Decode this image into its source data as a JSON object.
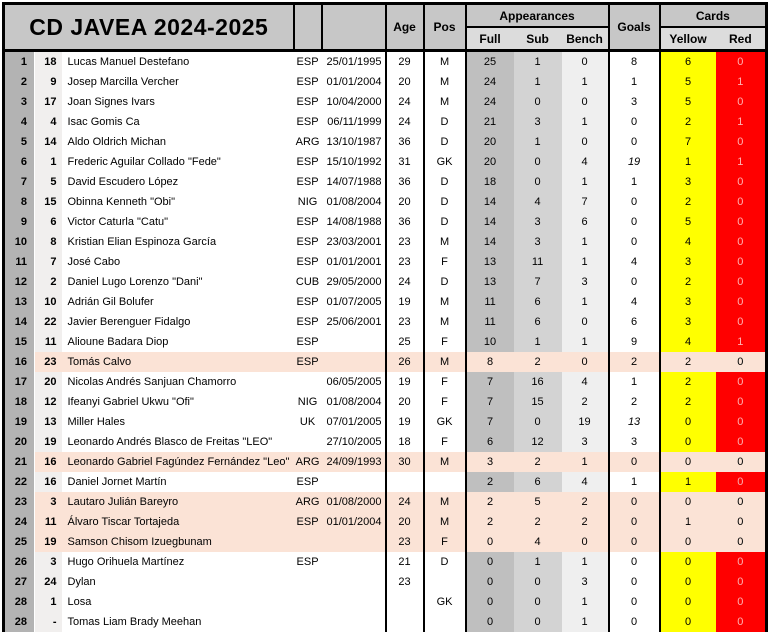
{
  "title": "CD JAVEA 2024-2025",
  "header": {
    "age": "Age",
    "pos": "Pos",
    "appearances": "Appearances",
    "full": "Full",
    "sub": "Sub",
    "bench": "Bench",
    "goals": "Goals",
    "cards": "Cards",
    "yellow": "Yellow",
    "red": "Red"
  },
  "colors": {
    "header_bg": "#c7c7c7",
    "subheader_bg": "#dcdcdc",
    "row_number_bg": "#b3b3b3",
    "shirt_number_bg": "#f1efee",
    "full_col_bg": "#bfbfbf",
    "sub_col_bg": "#d3d3d3",
    "bench_col_bg": "#efefef",
    "yellow_card_bg": "#ffff00",
    "red_card_bg": "#ff0000",
    "red_card_text": "#ffb1b1",
    "highlight_row_bg": "#fbe3d6"
  },
  "rows": [
    {
      "num": "1",
      "shirt": "18",
      "name": "Lucas Manuel Destefano",
      "nat": "ESP",
      "date": "25/01/1995",
      "age": "29",
      "pos": "M",
      "full": "25",
      "sub": "1",
      "bench": "0",
      "goals": "8",
      "yellow": "6",
      "red": "0",
      "highlight": false,
      "goals_italic": false
    },
    {
      "num": "2",
      "shirt": "9",
      "name": "Josep Marcilla Vercher",
      "nat": "ESP",
      "date": "01/01/2004",
      "age": "20",
      "pos": "M",
      "full": "24",
      "sub": "1",
      "bench": "1",
      "goals": "1",
      "yellow": "5",
      "red": "1",
      "highlight": false,
      "goals_italic": false
    },
    {
      "num": "3",
      "shirt": "17",
      "name": "Joan Signes Ivars",
      "nat": "ESP",
      "date": "10/04/2000",
      "age": "24",
      "pos": "M",
      "full": "24",
      "sub": "0",
      "bench": "0",
      "goals": "3",
      "yellow": "5",
      "red": "0",
      "highlight": false,
      "goals_italic": false
    },
    {
      "num": "4",
      "shirt": "4",
      "name": "Isac Gomis Ca",
      "nat": "ESP",
      "date": "06/11/1999",
      "age": "24",
      "pos": "D",
      "full": "21",
      "sub": "3",
      "bench": "1",
      "goals": "0",
      "yellow": "2",
      "red": "1",
      "highlight": false,
      "goals_italic": false
    },
    {
      "num": "5",
      "shirt": "14",
      "name": "Aldo Oldrich Michan",
      "nat": "ARG",
      "date": "13/10/1987",
      "age": "36",
      "pos": "D",
      "full": "20",
      "sub": "1",
      "bench": "0",
      "goals": "0",
      "yellow": "7",
      "red": "0",
      "highlight": false,
      "goals_italic": false
    },
    {
      "num": "6",
      "shirt": "1",
      "name": "Frederic Aguilar Collado \"Fede\"",
      "nat": "ESP",
      "date": "15/10/1992",
      "age": "31",
      "pos": "GK",
      "full": "20",
      "sub": "0",
      "bench": "4",
      "goals": "19",
      "yellow": "1",
      "red": "1",
      "highlight": false,
      "goals_italic": true
    },
    {
      "num": "7",
      "shirt": "5",
      "name": "David Escudero López",
      "nat": "ESP",
      "date": "14/07/1988",
      "age": "36",
      "pos": "D",
      "full": "18",
      "sub": "0",
      "bench": "1",
      "goals": "1",
      "yellow": "3",
      "red": "0",
      "highlight": false,
      "goals_italic": false
    },
    {
      "num": "8",
      "shirt": "15",
      "name": "Obinna Kenneth \"Obi\"",
      "nat": "NIG",
      "date": "01/08/2004",
      "age": "20",
      "pos": "D",
      "full": "14",
      "sub": "4",
      "bench": "7",
      "goals": "0",
      "yellow": "2",
      "red": "0",
      "highlight": false,
      "goals_italic": false
    },
    {
      "num": "9",
      "shirt": "6",
      "name": "Victor Caturla \"Catu\"",
      "nat": "ESP",
      "date": "14/08/1988",
      "age": "36",
      "pos": "D",
      "full": "14",
      "sub": "3",
      "bench": "6",
      "goals": "0",
      "yellow": "5",
      "red": "0",
      "highlight": false,
      "goals_italic": false
    },
    {
      "num": "10",
      "shirt": "8",
      "name": "Kristian Elian Espinoza García",
      "nat": "ESP",
      "date": "23/03/2001",
      "age": "23",
      "pos": "M",
      "full": "14",
      "sub": "3",
      "bench": "1",
      "goals": "0",
      "yellow": "4",
      "red": "0",
      "highlight": false,
      "goals_italic": false
    },
    {
      "num": "11",
      "shirt": "7",
      "name": "José Cabo",
      "nat": "ESP",
      "date": "01/01/2001",
      "age": "23",
      "pos": "F",
      "full": "13",
      "sub": "11",
      "bench": "1",
      "goals": "4",
      "yellow": "3",
      "red": "0",
      "highlight": false,
      "goals_italic": false
    },
    {
      "num": "12",
      "shirt": "2",
      "name": "Daniel Lugo Lorenzo \"Dani\"",
      "nat": "CUB",
      "date": "29/05/2000",
      "age": "24",
      "pos": "D",
      "full": "13",
      "sub": "7",
      "bench": "3",
      "goals": "0",
      "yellow": "2",
      "red": "0",
      "highlight": false,
      "goals_italic": false
    },
    {
      "num": "13",
      "shirt": "10",
      "name": "Adrián Gil Bolufer",
      "nat": "ESP",
      "date": "01/07/2005",
      "age": "19",
      "pos": "M",
      "full": "11",
      "sub": "6",
      "bench": "1",
      "goals": "4",
      "yellow": "3",
      "red": "0",
      "highlight": false,
      "goals_italic": false
    },
    {
      "num": "14",
      "shirt": "22",
      "name": "Javier Berenguer Fidalgo",
      "nat": "ESP",
      "date": "25/06/2001",
      "age": "23",
      "pos": "M",
      "full": "11",
      "sub": "6",
      "bench": "0",
      "goals": "6",
      "yellow": "3",
      "red": "0",
      "highlight": false,
      "goals_italic": false
    },
    {
      "num": "15",
      "shirt": "11",
      "name": "Alioune Badara Diop",
      "nat": "ESP",
      "date": "",
      "age": "25",
      "pos": "F",
      "full": "10",
      "sub": "1",
      "bench": "1",
      "goals": "9",
      "yellow": "4",
      "red": "1",
      "highlight": false,
      "goals_italic": false
    },
    {
      "num": "16",
      "shirt": "23",
      "name": "Tomás Calvo",
      "nat": "ESP",
      "date": "",
      "age": "26",
      "pos": "M",
      "full": "8",
      "sub": "2",
      "bench": "0",
      "goals": "2",
      "yellow": "2",
      "red": "0",
      "highlight": true,
      "goals_italic": false
    },
    {
      "num": "17",
      "shirt": "20",
      "name": "Nicolas Andrés Sanjuan Chamorro",
      "nat": "",
      "date": "06/05/2005",
      "age": "19",
      "pos": "F",
      "full": "7",
      "sub": "16",
      "bench": "4",
      "goals": "1",
      "yellow": "2",
      "red": "0",
      "highlight": false,
      "goals_italic": false
    },
    {
      "num": "18",
      "shirt": "12",
      "name": "Ifeanyi Gabriel Ukwu \"Ofi\"",
      "nat": "NIG",
      "date": "01/08/2004",
      "age": "20",
      "pos": "F",
      "full": "7",
      "sub": "15",
      "bench": "2",
      "goals": "2",
      "yellow": "2",
      "red": "0",
      "highlight": false,
      "goals_italic": false
    },
    {
      "num": "19",
      "shirt": "13",
      "name": "Miller Hales",
      "nat": "UK",
      "date": "07/01/2005",
      "age": "19",
      "pos": "GK",
      "full": "7",
      "sub": "0",
      "bench": "19",
      "goals": "13",
      "yellow": "0",
      "red": "0",
      "highlight": false,
      "goals_italic": true
    },
    {
      "num": "20",
      "shirt": "19",
      "name": "Leonardo Andrés Blasco de Freitas \"LEO\"",
      "nat": "",
      "date": "27/10/2005",
      "age": "18",
      "pos": "F",
      "full": "6",
      "sub": "12",
      "bench": "3",
      "goals": "3",
      "yellow": "0",
      "red": "0",
      "highlight": false,
      "goals_italic": false
    },
    {
      "num": "21",
      "shirt": "16",
      "name": "Leonardo Gabriel Fagúndez Fernández \"Leo\"",
      "nat": "ARG",
      "date": "24/09/1993",
      "age": "30",
      "pos": "M",
      "full": "3",
      "sub": "2",
      "bench": "1",
      "goals": "0",
      "yellow": "0",
      "red": "0",
      "highlight": true,
      "goals_italic": false
    },
    {
      "num": "22",
      "shirt": "16",
      "name": "Daniel Jornet Martín",
      "nat": "ESP",
      "date": "",
      "age": "",
      "pos": "",
      "full": "2",
      "sub": "6",
      "bench": "4",
      "goals": "1",
      "yellow": "1",
      "red": "0",
      "highlight": false,
      "goals_italic": false
    },
    {
      "num": "23",
      "shirt": "3",
      "name": "Lautaro Julián Bareyro",
      "nat": "ARG",
      "date": "01/08/2000",
      "age": "24",
      "pos": "M",
      "full": "2",
      "sub": "5",
      "bench": "2",
      "goals": "0",
      "yellow": "0",
      "red": "0",
      "highlight": true,
      "goals_italic": false
    },
    {
      "num": "24",
      "shirt": "11",
      "name": "Álvaro Tiscar Tortajeda",
      "nat": "ESP",
      "date": "01/01/2004",
      "age": "20",
      "pos": "M",
      "full": "2",
      "sub": "2",
      "bench": "2",
      "goals": "0",
      "yellow": "1",
      "red": "0",
      "highlight": true,
      "goals_italic": false
    },
    {
      "num": "25",
      "shirt": "19",
      "name": "Samson Chisom Izuegbunam",
      "nat": "",
      "date": "",
      "age": "23",
      "pos": "F",
      "full": "0",
      "sub": "4",
      "bench": "0",
      "goals": "0",
      "yellow": "0",
      "red": "0",
      "highlight": true,
      "goals_italic": false
    },
    {
      "num": "26",
      "shirt": "3",
      "name": "Hugo Orihuela Martínez",
      "nat": "ESP",
      "date": "",
      "age": "21",
      "pos": "D",
      "full": "0",
      "sub": "1",
      "bench": "1",
      "goals": "0",
      "yellow": "0",
      "red": "0",
      "highlight": false,
      "goals_italic": false
    },
    {
      "num": "27",
      "shirt": "24",
      "name": "Dylan",
      "nat": "",
      "date": "",
      "age": "23",
      "pos": "",
      "full": "0",
      "sub": "0",
      "bench": "3",
      "goals": "0",
      "yellow": "0",
      "red": "0",
      "highlight": false,
      "goals_italic": false
    },
    {
      "num": "28",
      "shirt": "1",
      "name": "Losa",
      "nat": "",
      "date": "",
      "age": "",
      "pos": "GK",
      "full": "0",
      "sub": "0",
      "bench": "1",
      "goals": "0",
      "yellow": "0",
      "red": "0",
      "highlight": false,
      "goals_italic": false
    },
    {
      "num": "28",
      "shirt": "-",
      "name": "Tomas Liam Brady Meehan",
      "nat": "",
      "date": "",
      "age": "",
      "pos": "",
      "full": "0",
      "sub": "0",
      "bench": "1",
      "goals": "0",
      "yellow": "0",
      "red": "0",
      "highlight": false,
      "goals_italic": false
    }
  ]
}
